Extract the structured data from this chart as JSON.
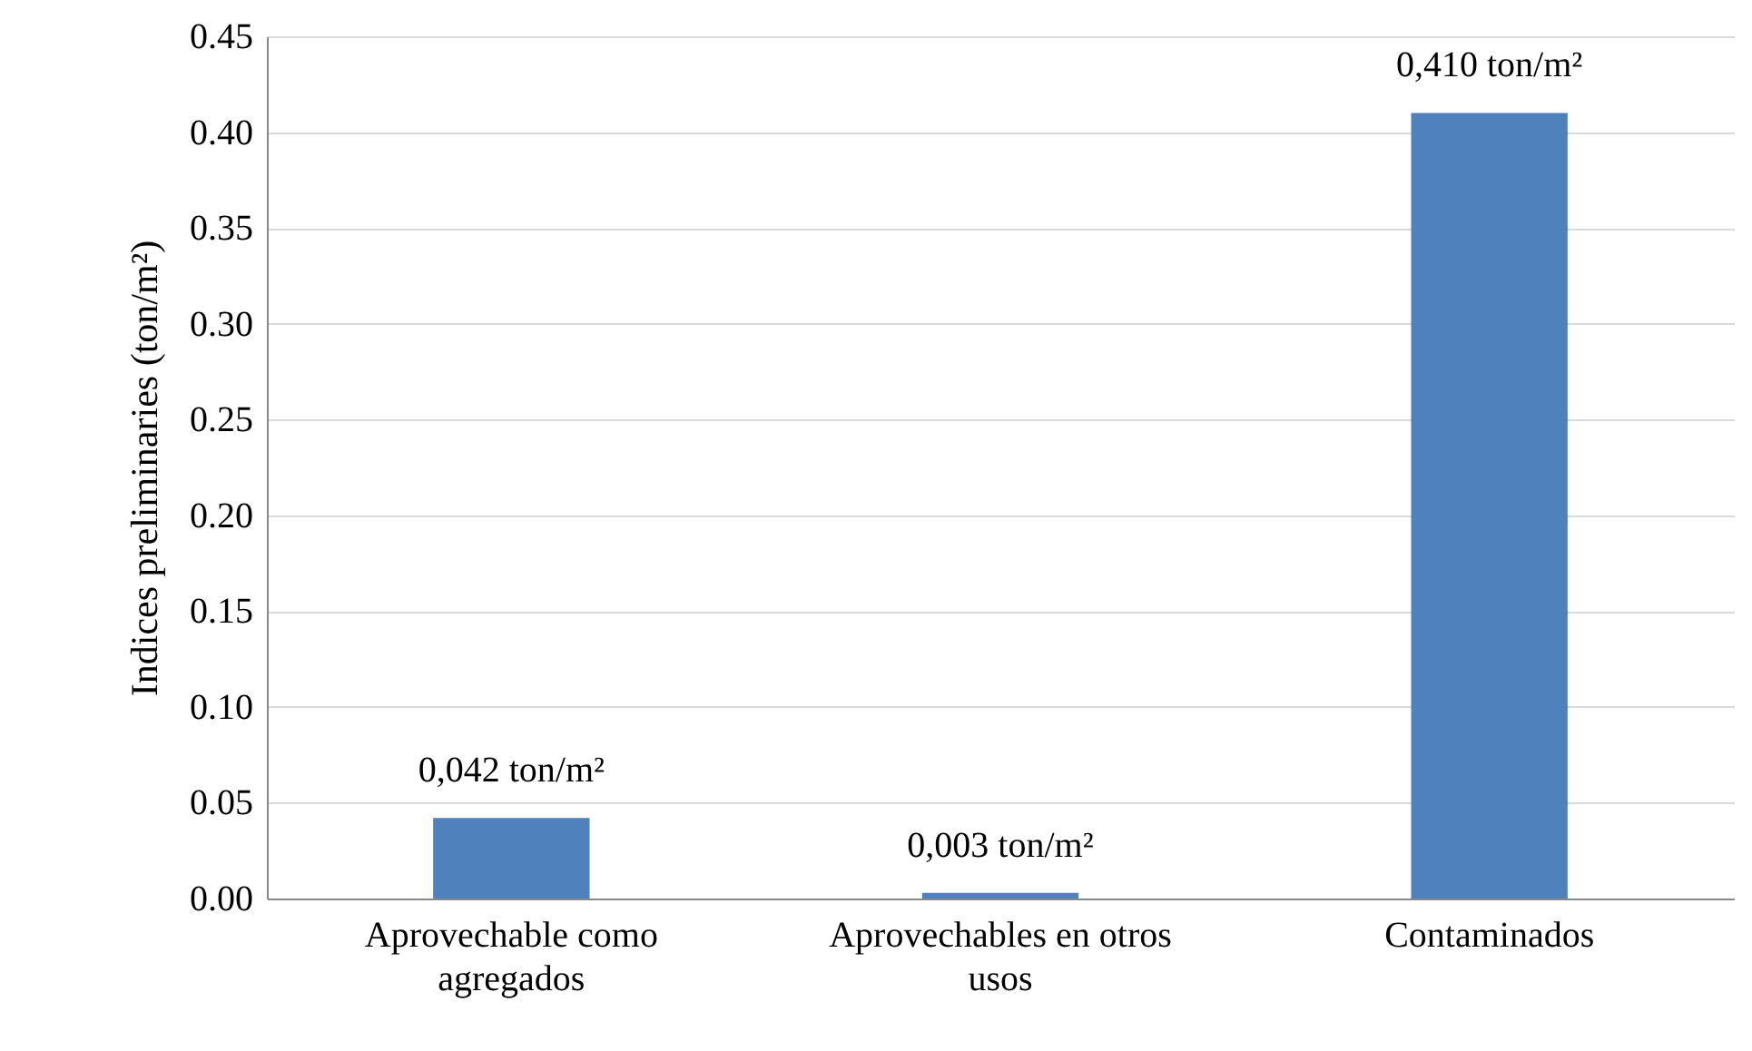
{
  "chart_data": {
    "type": "bar",
    "ylabel": "Indices preliminaries (ton/m²)",
    "categories": [
      "Aprovechable como agregados",
      "Aprovechables en otros usos",
      "Contaminados"
    ],
    "values": [
      0.042,
      0.003,
      0.41
    ],
    "value_labels": [
      "0,042 ton/m²",
      "0,003 ton/m²",
      "0,410 ton/m²"
    ],
    "color": "#4f81bd",
    "ylim": [
      0,
      0.45
    ],
    "yticks": [
      {
        "value": 0,
        "label": "0.00"
      },
      {
        "value": 0.05,
        "label": "0.05"
      },
      {
        "value": 0.1,
        "label": "0.10"
      },
      {
        "value": 0.15,
        "label": "0.15"
      },
      {
        "value": 0.2,
        "label": "0.20"
      },
      {
        "value": 0.25,
        "label": "0.25"
      },
      {
        "value": 0.3,
        "label": "0.30"
      },
      {
        "value": 0.35,
        "label": "0.35"
      },
      {
        "value": 0.4,
        "label": "0.40"
      },
      {
        "value": 0.45,
        "label": "0.45"
      }
    ],
    "grid": "y"
  }
}
